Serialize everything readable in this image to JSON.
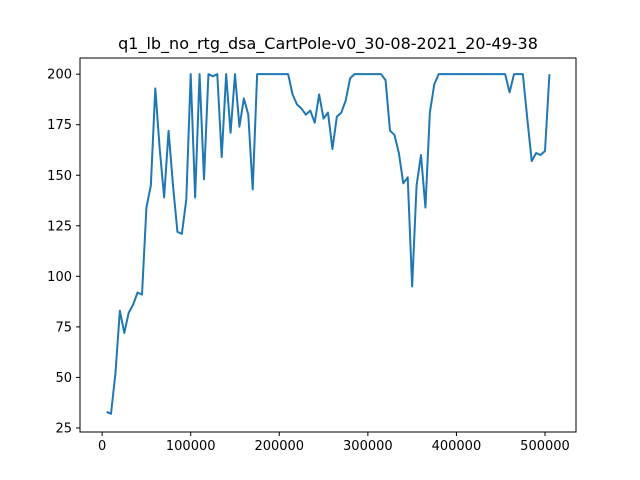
{
  "chart_data": {
    "type": "line",
    "title": "q1_lb_no_rtg_dsa_CartPole-v0_30-08-2021_20-49-38",
    "xlabel": "",
    "ylabel": "",
    "xlim": [
      -25000,
      535000
    ],
    "ylim": [
      23,
      208
    ],
    "x_ticks": [
      0,
      100000,
      200000,
      300000,
      400000,
      500000
    ],
    "y_ticks": [
      25,
      50,
      75,
      100,
      125,
      150,
      175,
      200
    ],
    "grid": false,
    "line_color": "#1f77b4",
    "series": [
      {
        "x": [
          5000,
          10000,
          15000,
          20000,
          25000,
          30000,
          35000,
          40000,
          45000,
          50000,
          55000,
          60000,
          65000,
          70000,
          75000,
          80000,
          85000,
          90000,
          95000,
          100000,
          105000,
          110000,
          115000,
          120000,
          125000,
          130000,
          135000,
          140000,
          145000,
          150000,
          155000,
          160000,
          165000,
          170000,
          175000,
          180000,
          185000,
          190000,
          195000,
          200000,
          205000,
          210000,
          215000,
          220000,
          225000,
          230000,
          235000,
          240000,
          245000,
          250000,
          255000,
          260000,
          265000,
          270000,
          275000,
          280000,
          285000,
          290000,
          295000,
          300000,
          305000,
          310000,
          315000,
          320000,
          325000,
          330000,
          335000,
          340000,
          345000,
          350000,
          355000,
          360000,
          365000,
          370000,
          375000,
          380000,
          385000,
          390000,
          395000,
          400000,
          405000,
          410000,
          415000,
          420000,
          425000,
          430000,
          435000,
          440000,
          445000,
          450000,
          455000,
          460000,
          465000,
          470000,
          475000,
          480000,
          485000,
          490000,
          495000,
          500000,
          505000
        ],
        "values": [
          33,
          32,
          52,
          83,
          72,
          82,
          86,
          92,
          91,
          134,
          145,
          193,
          163,
          139,
          172,
          145,
          122,
          121,
          138,
          200,
          139,
          200,
          148,
          200,
          199,
          200,
          159,
          200,
          171,
          200,
          174,
          188,
          180,
          143,
          200,
          200,
          200,
          200,
          200,
          200,
          200,
          200,
          190,
          185,
          183,
          180,
          182,
          176,
          190,
          178,
          181,
          163,
          179,
          181,
          187,
          198,
          200,
          200,
          200,
          200,
          200,
          200,
          200,
          197,
          172,
          170,
          161,
          146,
          149,
          95,
          145,
          160,
          134,
          181,
          195,
          200,
          200,
          200,
          200,
          200,
          200,
          200,
          200,
          200,
          200,
          200,
          200,
          200,
          200,
          200,
          200,
          191,
          200,
          200,
          200,
          178,
          157,
          161,
          160,
          162,
          200
        ]
      }
    ]
  }
}
